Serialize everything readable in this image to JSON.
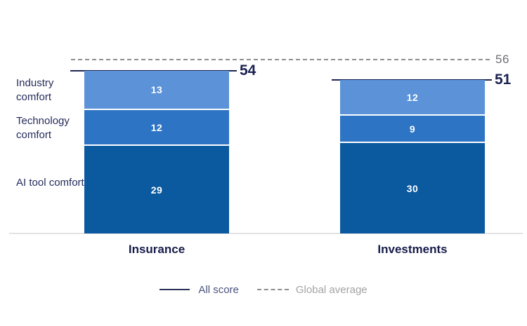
{
  "chart_data": {
    "type": "bar",
    "variant": "stacked-column",
    "categories": [
      "Insurance",
      "Investments"
    ],
    "series": [
      {
        "name": "Industry comfort",
        "color": "#5b92d8",
        "values": [
          13,
          12
        ]
      },
      {
        "name": "Technology comfort",
        "color": "#2e74c4",
        "values": [
          12,
          9
        ]
      },
      {
        "name": "AI tool comfort",
        "color": "#0b5aa0",
        "values": [
          29,
          30
        ]
      }
    ],
    "totals": {
      "name": "All score",
      "values": [
        54,
        51
      ]
    },
    "reference": {
      "name": "Global average",
      "value": 56
    },
    "ylim": [
      0,
      60
    ],
    "grid": false,
    "legend_position": "bottom-center"
  },
  "legend": {
    "items": [
      {
        "label": "All score",
        "style": "solid-line"
      },
      {
        "label": "Global average",
        "style": "dashed-line"
      }
    ]
  },
  "colors": {
    "segment_light_blue": "#5b92d8",
    "segment_mid_blue": "#2e74c4",
    "segment_dark_blue": "#0b5aa0",
    "navy_text": "#1b2150",
    "reference_gray": "#6d6e71",
    "dash_gray": "#8d8e90",
    "legend_all_score_text": "#4a527e",
    "legend_global_average_text": "#a3a3a6",
    "baseline_gray": "#e3e3e3"
  }
}
